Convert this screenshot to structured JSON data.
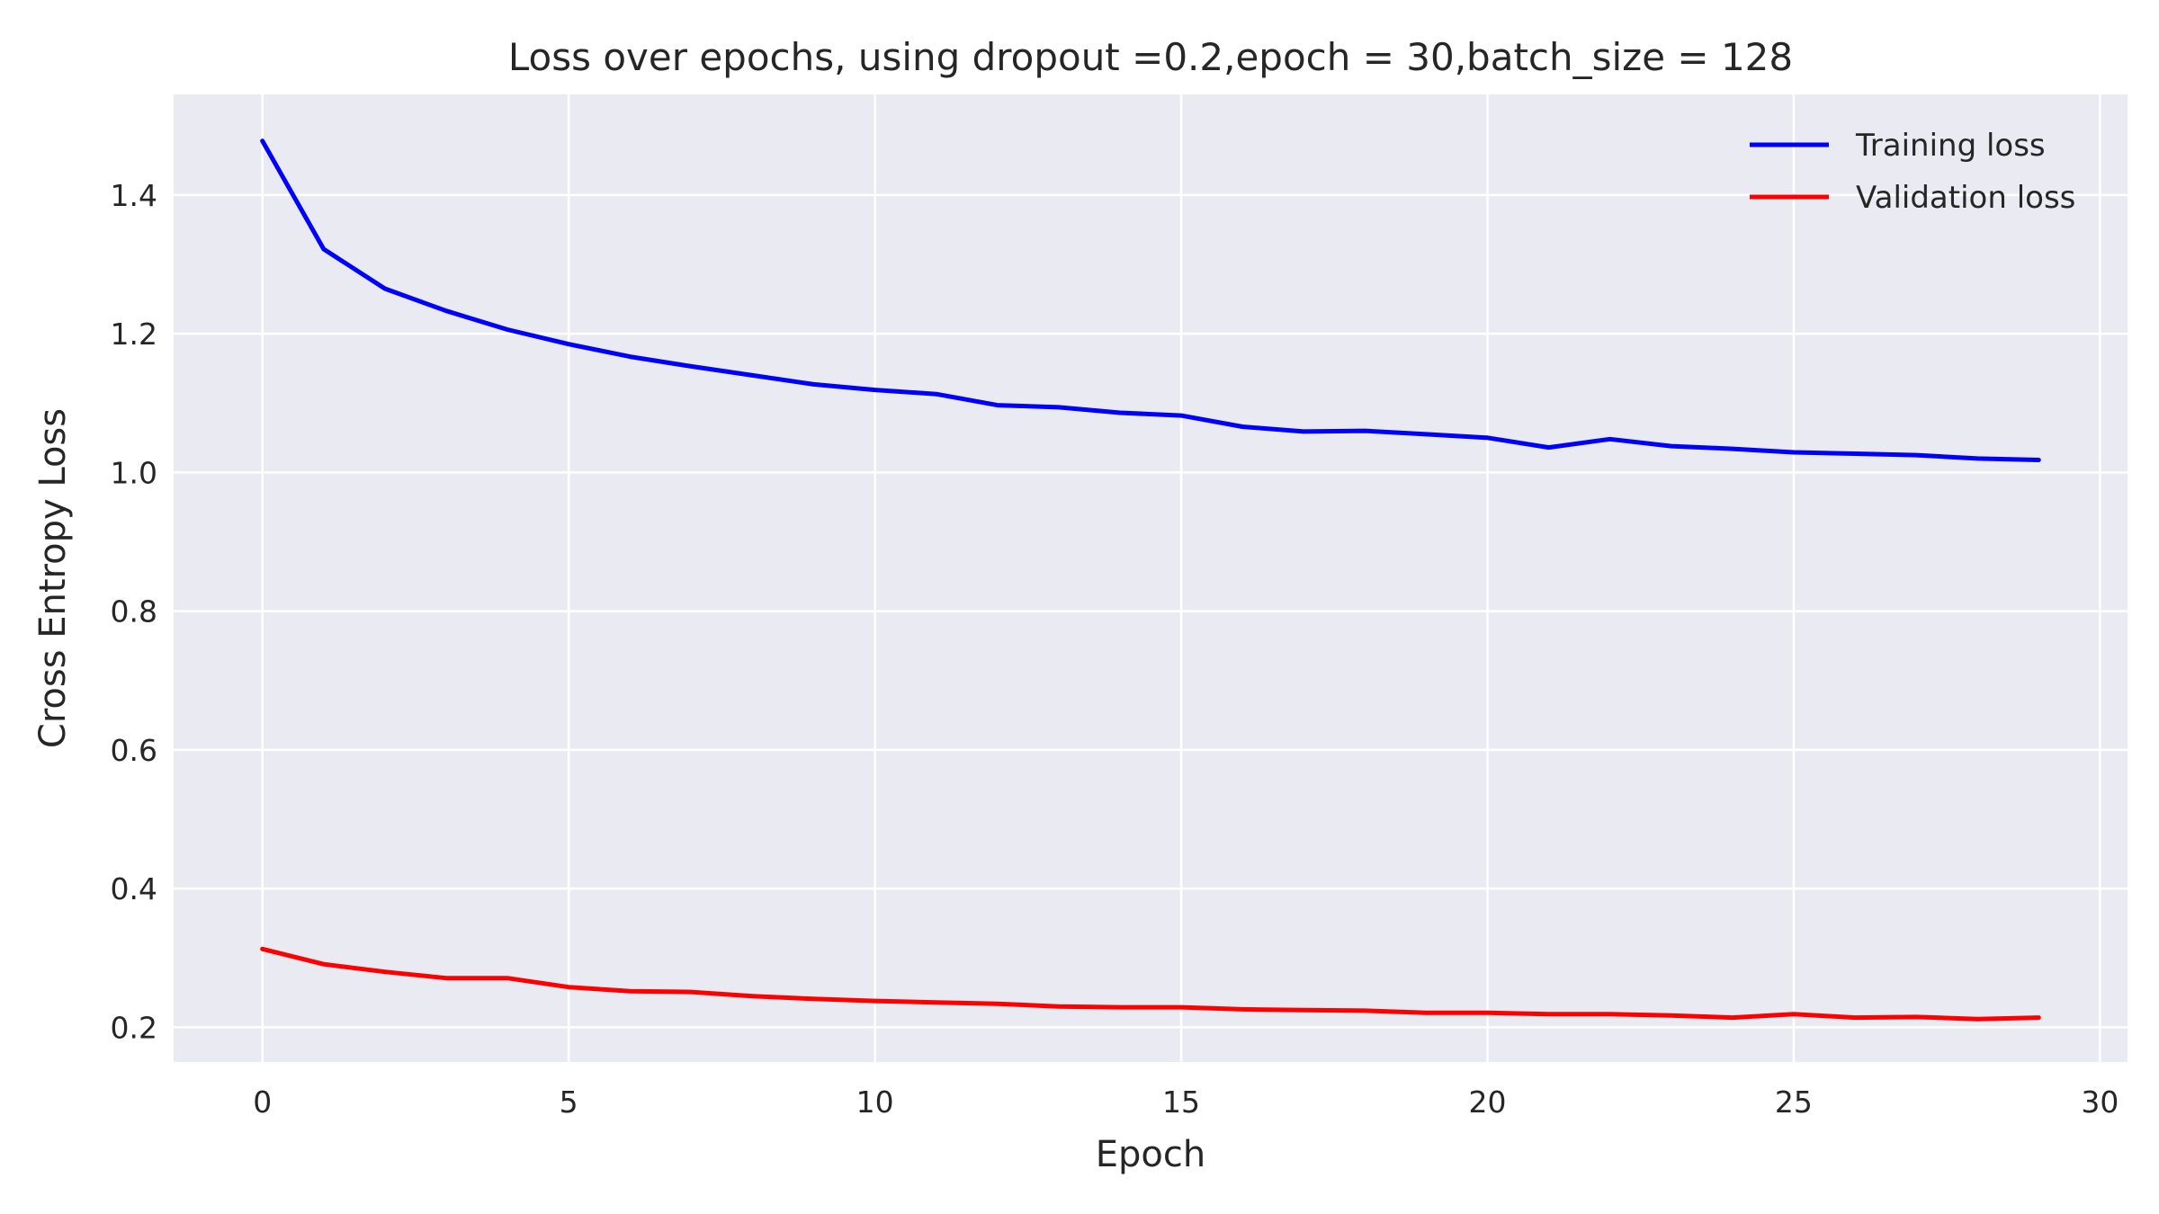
{
  "chart_data": {
    "type": "line",
    "title": "Loss over epochs, using dropout =0.2,epoch = 30,batch_size = 128",
    "xlabel": "Epoch",
    "ylabel": "Cross Entropy Loss",
    "xlim": [
      -1.45,
      30.45
    ],
    "ylim": [
      0.15,
      1.545
    ],
    "xticks": [
      0,
      5,
      10,
      15,
      20,
      25,
      30
    ],
    "xtick_labels": [
      "0",
      "5",
      "10",
      "15",
      "20",
      "25",
      "30"
    ],
    "yticks": [
      0.2,
      0.4,
      0.6,
      0.8,
      1.0,
      1.2,
      1.4
    ],
    "ytick_labels": [
      "0.2",
      "0.4",
      "0.6",
      "0.8",
      "1.0",
      "1.2",
      "1.4"
    ],
    "grid": true,
    "legend_position": "upper right",
    "x": [
      0,
      1,
      2,
      3,
      4,
      5,
      6,
      7,
      8,
      9,
      10,
      11,
      12,
      13,
      14,
      15,
      16,
      17,
      18,
      19,
      20,
      21,
      22,
      23,
      24,
      25,
      26,
      27,
      28,
      29
    ],
    "series": [
      {
        "name": "Training loss",
        "color": "#0000ff",
        "values": [
          1.478,
          1.322,
          1.265,
          1.233,
          1.206,
          1.185,
          1.167,
          1.153,
          1.14,
          1.127,
          1.119,
          1.113,
          1.097,
          1.094,
          1.086,
          1.082,
          1.066,
          1.059,
          1.06,
          1.055,
          1.05,
          1.036,
          1.048,
          1.038,
          1.034,
          1.029,
          1.027,
          1.025,
          1.02,
          1.018
        ]
      },
      {
        "name": "Validation loss",
        "color": "#ff0000",
        "values": [
          0.313,
          0.291,
          0.28,
          0.271,
          0.271,
          0.258,
          0.252,
          0.251,
          0.245,
          0.241,
          0.238,
          0.236,
          0.234,
          0.23,
          0.229,
          0.229,
          0.226,
          0.225,
          0.224,
          0.221,
          0.221,
          0.219,
          0.219,
          0.217,
          0.214,
          0.219,
          0.214,
          0.215,
          0.212,
          0.214
        ]
      }
    ]
  }
}
